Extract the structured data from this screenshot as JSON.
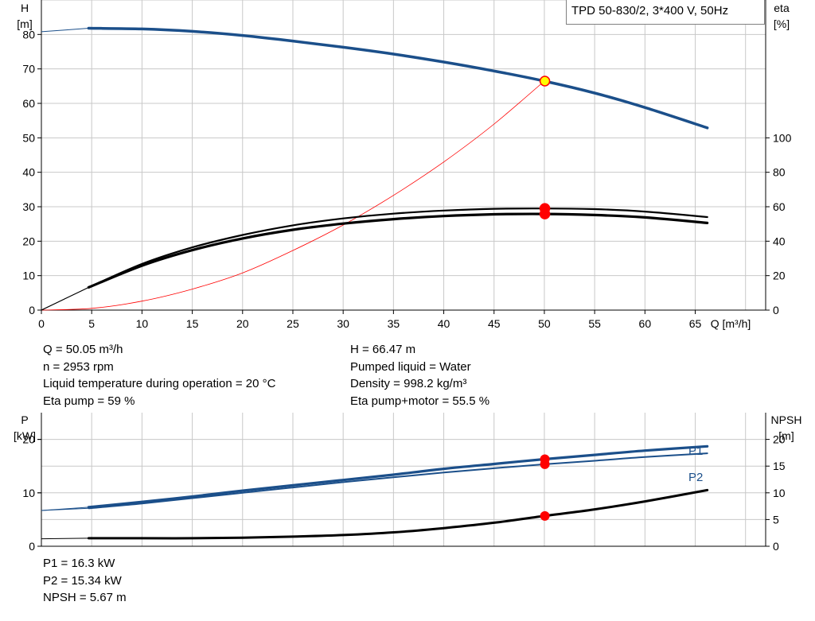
{
  "chart_data": [
    {
      "type": "line",
      "title": "TPD 50-830/2, 3*400 V, 50Hz",
      "xlabel": "Q [m³/h]",
      "ylabel_left": [
        "H",
        "[m]"
      ],
      "ylabel_right": [
        "eta",
        "[%]"
      ],
      "xlim": [
        0,
        72
      ],
      "ylim_left": [
        0,
        90
      ],
      "ylim_right_ticks": [
        0,
        20,
        40,
        60,
        80,
        100
      ],
      "xticks": [
        0,
        5,
        10,
        15,
        20,
        25,
        30,
        35,
        40,
        45,
        50,
        55,
        60,
        65
      ],
      "yticks_left": [
        0,
        10,
        20,
        30,
        40,
        50,
        60,
        70,
        80
      ],
      "grid": true,
      "series": [
        {
          "color": "#1b4f8a",
          "x": [
            0,
            4.7,
            10,
            15,
            20,
            25,
            30,
            35,
            40,
            45,
            50,
            55,
            60,
            66.2
          ],
          "values": [
            80.8,
            81.8,
            81.6,
            80.9,
            79.7,
            78.1,
            76.3,
            74.3,
            72.0,
            69.4,
            66.47,
            63.0,
            58.8,
            52.9
          ],
          "note_axis": "left"
        },
        {
          "color": "#ff0000",
          "x": [
            0,
            5,
            10,
            15,
            20,
            25,
            30,
            35,
            40,
            45,
            50
          ],
          "values": [
            0,
            0.5,
            2.6,
            6.1,
            10.8,
            17.3,
            24.7,
            33.3,
            43.0,
            54.0,
            66.47
          ],
          "note_axis": "left"
        },
        {
          "color": "#000000",
          "x": [
            0,
            4.7,
            10,
            15,
            20,
            25,
            30,
            35,
            40,
            45,
            50,
            55,
            60,
            66.2
          ],
          "values": [
            0,
            6.6,
            13.4,
            18.2,
            21.8,
            24.6,
            26.6,
            28.0,
            28.9,
            29.4,
            29.5,
            29.3,
            28.6,
            27.0
          ],
          "note_axis": "left"
        },
        {
          "color": "#000000",
          "x": [
            0,
            4.7,
            10,
            15,
            20,
            25,
            30,
            35,
            40,
            45,
            50,
            55,
            60,
            66.2
          ],
          "values": [
            0,
            6.6,
            12.9,
            17.4,
            20.8,
            23.3,
            25.1,
            26.4,
            27.3,
            27.8,
            27.9,
            27.6,
            26.9,
            25.3
          ],
          "note_axis": "left"
        }
      ],
      "operating_points": [
        {
          "x": 50.05,
          "y": 66.47,
          "color": "#ffff00"
        },
        {
          "x": 50.05,
          "y": 29.5,
          "color": "#ff0000"
        },
        {
          "x": 50.05,
          "y": 27.9,
          "color": "#ff0000"
        }
      ]
    },
    {
      "type": "line",
      "xlim": [
        0,
        72
      ],
      "ylabel_left": [
        "P",
        "[kW]"
      ],
      "ylabel_right": [
        "NPSH",
        "[m]"
      ],
      "ylim_left": [
        0,
        25
      ],
      "yticks_left": [
        0,
        10,
        20
      ],
      "ylim_right": [
        0,
        20
      ],
      "yticks_right": [
        0,
        5,
        10,
        15,
        20
      ],
      "grid": true,
      "series": [
        {
          "name": "P1",
          "color": "#1b4f8a",
          "x": [
            0,
            4.7,
            10,
            15,
            20,
            25,
            30,
            35,
            40,
            45,
            50,
            55,
            60,
            66.2
          ],
          "values": [
            6.7,
            7.3,
            8.3,
            9.3,
            10.4,
            11.4,
            12.4,
            13.4,
            14.5,
            15.4,
            16.3,
            17.1,
            17.9,
            18.7
          ]
        },
        {
          "name": "P2",
          "color": "#1b4f8a",
          "x": [
            0,
            4.7,
            10,
            15,
            20,
            25,
            30,
            35,
            40,
            45,
            50,
            55,
            60,
            66.2
          ],
          "values": [
            6.7,
            7.1,
            8.0,
            9.0,
            10.0,
            11.0,
            12.0,
            12.9,
            13.8,
            14.6,
            15.34,
            16.0,
            16.7,
            17.4
          ]
        },
        {
          "name": "NPSH",
          "color": "#000000",
          "axis": "right",
          "x": [
            0,
            4.7,
            10,
            15,
            20,
            25,
            30,
            35,
            40,
            45,
            50,
            55,
            60,
            66.2
          ],
          "values": [
            1.4,
            1.5,
            1.5,
            1.5,
            1.6,
            1.8,
            2.1,
            2.6,
            3.4,
            4.4,
            5.67,
            6.9,
            8.4,
            10.5
          ]
        }
      ],
      "operating_points": [
        {
          "x": 50.05,
          "y": 16.3,
          "color": "#ff0000",
          "axis": "left"
        },
        {
          "x": 50.05,
          "y": 15.34,
          "color": "#ff0000",
          "axis": "left"
        },
        {
          "x": 50.05,
          "y": 5.67,
          "color": "#ff0000",
          "axis": "right"
        }
      ]
    }
  ],
  "info_top_left": [
    "Q = 50.05 m³/h",
    "n = 2953 rpm",
    "Liquid temperature during operation = 20 °C",
    "Eta pump = 59 %"
  ],
  "info_top_right": [
    "H = 66.47 m",
    "Pumped liquid = Water",
    "Density = 998.2 kg/m³",
    "Eta pump+motor = 55.5 %"
  ],
  "info_bottom": [
    "P1 = 16.3 kW",
    "P2 = 15.34 kW",
    "NPSH = 5.67 m"
  ]
}
